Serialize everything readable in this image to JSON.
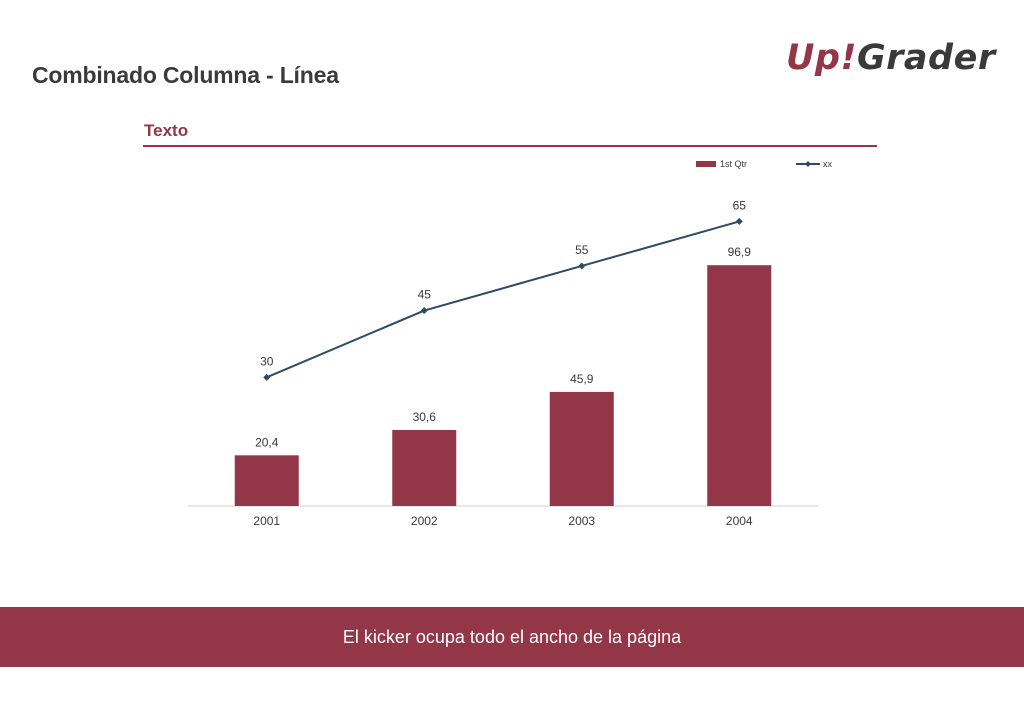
{
  "header": {
    "title": "Combinado Columna - Línea",
    "logo_part1": "Up!",
    "logo_part2": "Grader"
  },
  "section": {
    "title": "Texto"
  },
  "kicker": {
    "text": "El kicker ocupa todo el ancho de la página"
  },
  "colors": {
    "accent": "#923648",
    "line": "#2f4a66",
    "title": "#3a3a3a"
  },
  "chart_data": {
    "type": "bar",
    "categories": [
      "2001",
      "2002",
      "2003",
      "2004"
    ],
    "series": [
      {
        "name": "1st Qtr",
        "type": "bar",
        "values": [
          20.4,
          30.6,
          45.9,
          96.9
        ],
        "labels": [
          "20,4",
          "30,6",
          "45,9",
          "96,9"
        ],
        "color": "#923648"
      },
      {
        "name": "xx",
        "type": "line",
        "values": [
          30,
          45,
          55,
          65
        ],
        "labels": [
          "30",
          "45",
          "55",
          "65"
        ],
        "color": "#2f4a66"
      }
    ],
    "legend": "top-right",
    "grid": false
  }
}
